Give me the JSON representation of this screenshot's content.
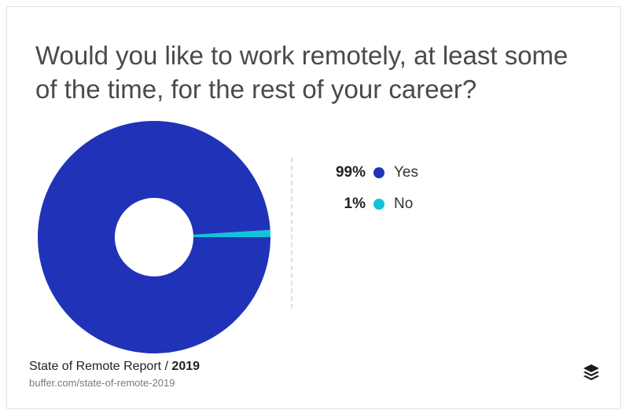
{
  "header": {
    "title": "Would you like to work remotely, at least some of the time, for the rest of your career?"
  },
  "chart_data": {
    "type": "pie",
    "donut": true,
    "categories": [
      "Yes",
      "No"
    ],
    "values": [
      99,
      1
    ],
    "labels": [
      "99%",
      "1%"
    ],
    "colors": [
      "#2033b8",
      "#10c4d8"
    ],
    "legend_position": "right"
  },
  "footer": {
    "source_title": "State of Remote Report / ",
    "source_year": "2019",
    "source_url": "buffer.com/state-of-remote-2019"
  },
  "logo": {
    "icon": "buffer-stack-logo-icon"
  }
}
